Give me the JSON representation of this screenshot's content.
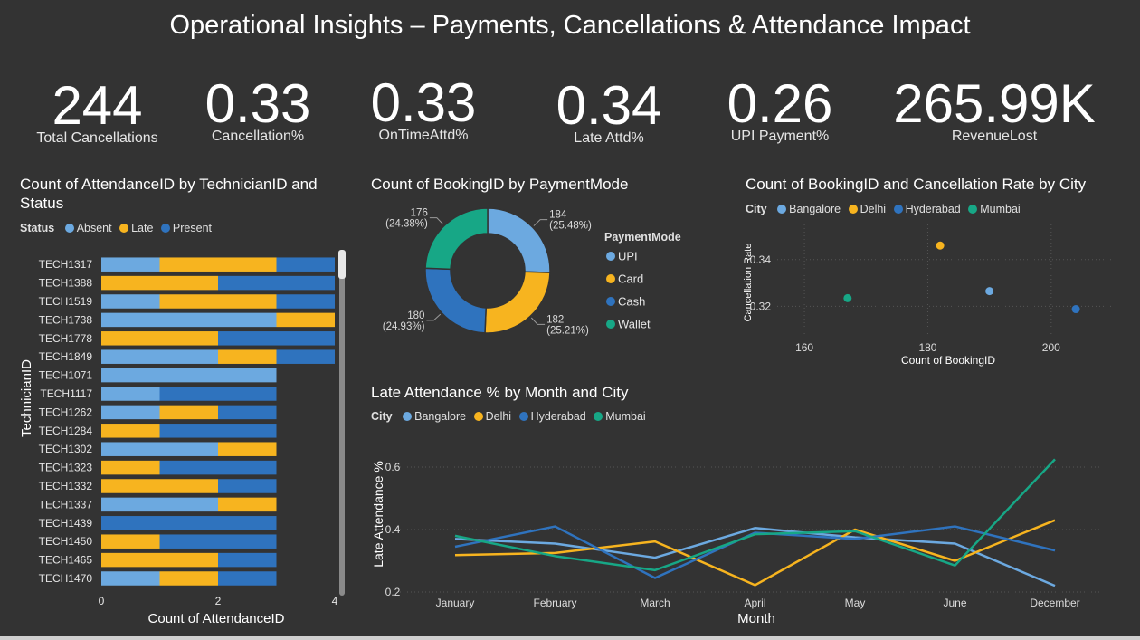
{
  "title": "Operational Insights – Payments, Cancellations & Attendance Impact",
  "colors": {
    "bangalore": "#6CA9E0",
    "delhi": "#F7B41F",
    "hyderabad": "#2F73BE",
    "mumbai": "#17A786",
    "absent": "#6CA9E0",
    "late": "#F7B41F",
    "present": "#2F73BE",
    "upi": "#6CA9E0",
    "card": "#F7B41F",
    "cash": "#2F73BE",
    "wallet": "#17A786"
  },
  "kpis": [
    {
      "value": "244",
      "label": "Total Cancellations"
    },
    {
      "value": "0.33",
      "label": "Cancellation%"
    },
    {
      "value": "0.33",
      "label": "OnTimeAttd%"
    },
    {
      "value": "0.34",
      "label": "Late Attd%"
    },
    {
      "value": "0.26",
      "label": "UPI Payment%"
    },
    {
      "value": "265.99K",
      "label": "RevenueLost"
    }
  ],
  "charts": {
    "bar": {
      "title": "Count of AttendanceID by TechnicianID and Status",
      "legend_title": "Status",
      "legend": [
        "Absent",
        "Late",
        "Present"
      ]
    },
    "donut": {
      "title": "Count of BookingID by PaymentMode",
      "legend_title": "PaymentMode",
      "legend": [
        "UPI",
        "Card",
        "Cash",
        "Wallet"
      ]
    },
    "scatter": {
      "title": "Count of BookingID and Cancellation Rate by City",
      "legend_title": "City",
      "legend": [
        "Bangalore",
        "Delhi",
        "Hyderabad",
        "Mumbai"
      ]
    },
    "line": {
      "title": "Late Attendance % by Month and City",
      "legend_title": "City",
      "legend": [
        "Bangalore",
        "Delhi",
        "Hyderabad",
        "Mumbai"
      ]
    }
  },
  "chart_data": [
    {
      "type": "bar",
      "orientation": "horizontal-stacked",
      "title": "Count of AttendanceID by TechnicianID and Status",
      "xlabel": "Count of AttendanceID",
      "ylabel": "TechnicianID",
      "xlim": [
        0,
        4
      ],
      "xticks": [
        "0",
        "2",
        "4"
      ],
      "categories": [
        "TECH1317",
        "TECH1388",
        "TECH1519",
        "TECH1738",
        "TECH1778",
        "TECH1849",
        "TECH1071",
        "TECH1117",
        "TECH1262",
        "TECH1284",
        "TECH1302",
        "TECH1323",
        "TECH1332",
        "TECH1337",
        "TECH1439",
        "TECH1450",
        "TECH1465",
        "TECH1470"
      ],
      "series": [
        {
          "name": "Absent",
          "values": [
            1,
            0,
            1,
            3,
            0,
            2,
            3,
            1,
            1,
            0,
            2,
            0,
            0,
            2,
            0,
            0,
            0,
            1
          ]
        },
        {
          "name": "Late",
          "values": [
            2,
            2,
            2,
            1,
            2,
            1,
            0,
            0,
            1,
            1,
            1,
            1,
            2,
            1,
            0,
            1,
            2,
            1
          ]
        },
        {
          "name": "Present",
          "values": [
            1,
            2,
            1,
            0,
            2,
            1,
            0,
            2,
            1,
            2,
            0,
            2,
            1,
            0,
            3,
            2,
            1,
            1
          ]
        }
      ]
    },
    {
      "type": "pie",
      "variant": "donut",
      "title": "Count of BookingID by PaymentMode",
      "categories": [
        "UPI",
        "Card",
        "Cash",
        "Wallet"
      ],
      "values": [
        184,
        182,
        180,
        176
      ],
      "data_labels": [
        "184\n(25.48%)",
        "182\n(25.21%)",
        "180\n(24.93%)",
        "176\n(24.38%)"
      ]
    },
    {
      "type": "scatter",
      "title": "Count of BookingID and Cancellation Rate by City",
      "xlabel": "Count of BookingID",
      "ylabel": "Cancellation Rate",
      "xlim": [
        155,
        210
      ],
      "ylim": [
        0.307,
        0.355
      ],
      "xticks": [
        160,
        180,
        200
      ],
      "yticks": [
        0.32,
        0.34
      ],
      "points": [
        {
          "name": "Bangalore",
          "x": 190,
          "y": 0.3265
        },
        {
          "name": "Delhi",
          "x": 182,
          "y": 0.346
        },
        {
          "name": "Hyderabad",
          "x": 204,
          "y": 0.3188
        },
        {
          "name": "Mumbai",
          "x": 167,
          "y": 0.3235
        }
      ]
    },
    {
      "type": "line",
      "title": "Late Attendance % by Month and City",
      "xlabel": "Month",
      "ylabel": "Late Attendance %",
      "categories": [
        "January",
        "February",
        "March",
        "April",
        "May",
        "June",
        "December"
      ],
      "ylim": [
        0.2,
        0.6667
      ],
      "yticks": [
        "0.2",
        "0.4",
        "0.6"
      ],
      "series": [
        {
          "name": "Bangalore",
          "values": [
            0.37,
            0.355,
            0.31,
            0.405,
            0.375,
            0.355,
            0.22
          ]
        },
        {
          "name": "Delhi",
          "values": [
            0.318,
            0.325,
            0.362,
            0.222,
            0.4,
            0.3,
            0.43
          ]
        },
        {
          "name": "Hyderabad",
          "values": [
            0.345,
            0.41,
            0.245,
            0.39,
            0.37,
            0.41,
            0.333
          ]
        },
        {
          "name": "Mumbai",
          "values": [
            0.38,
            0.315,
            0.27,
            0.385,
            0.395,
            0.285,
            0.625
          ]
        }
      ]
    }
  ]
}
